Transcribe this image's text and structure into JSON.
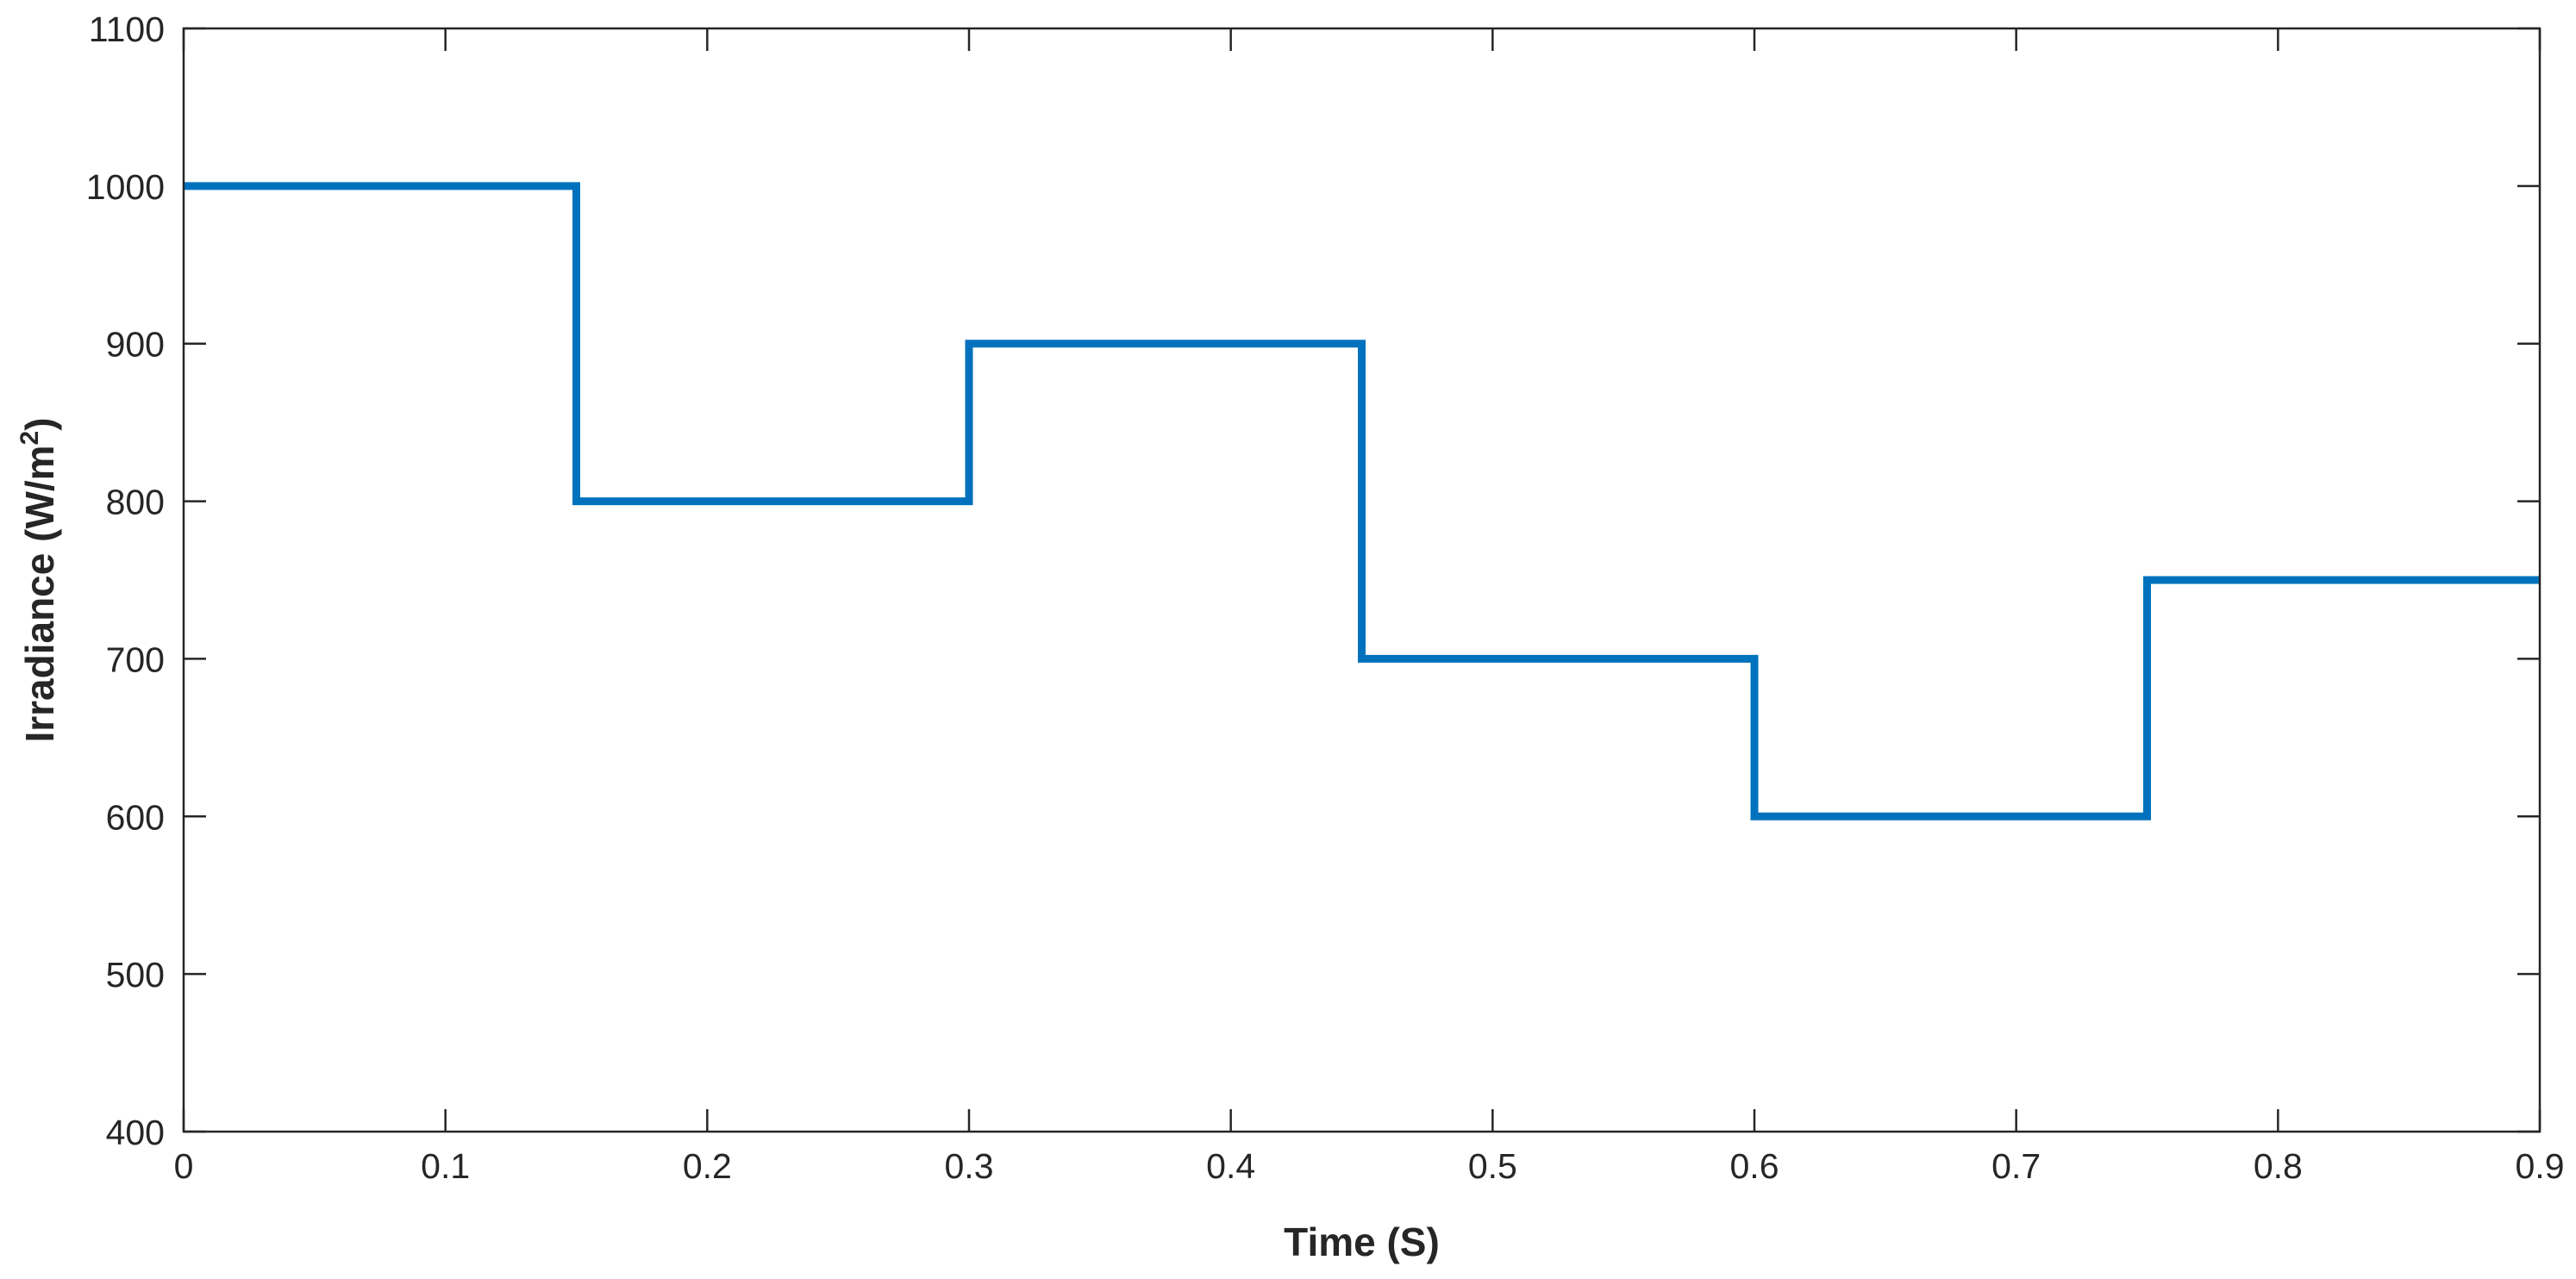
{
  "chart_data": {
    "type": "line",
    "xlabel": "Time (S)",
    "ylabel": {
      "prefix": "Irradiance (W/m",
      "superscript": "2",
      "suffix": ")"
    },
    "xlim": [
      0,
      0.9
    ],
    "ylim": [
      400,
      1100
    ],
    "x_ticks": [
      0,
      0.1,
      0.2,
      0.3,
      0.4,
      0.5,
      0.6,
      0.7,
      0.8,
      0.9
    ],
    "x_tick_labels": [
      "0",
      "0.1",
      "0.2",
      "0.3",
      "0.4",
      "0.5",
      "0.6",
      "0.7",
      "0.8",
      "0.9"
    ],
    "y_ticks": [
      400,
      500,
      600,
      700,
      800,
      900,
      1000,
      1100
    ],
    "y_tick_labels": [
      "400",
      "500",
      "600",
      "700",
      "800",
      "900",
      "1000",
      "1100"
    ],
    "grid": false,
    "box": true,
    "series": [
      {
        "color": "#0072BD",
        "line_style": "step",
        "x": [
          0,
          0.15,
          0.15,
          0.3,
          0.3,
          0.45,
          0.45,
          0.6,
          0.6,
          0.75,
          0.75,
          0.9
        ],
        "y": [
          1000,
          1000,
          800,
          800,
          900,
          900,
          700,
          700,
          600,
          600,
          750,
          750
        ]
      }
    ]
  }
}
